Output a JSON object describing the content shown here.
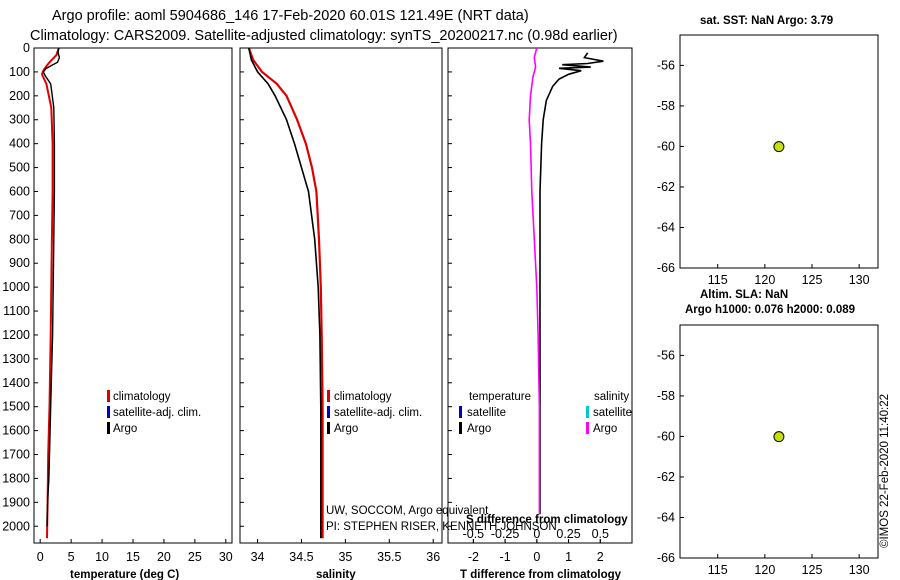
{
  "titles": {
    "line1": "Argo profile: aoml 5904686_146 17-Feb-2020 60.01S 121.49E (NRT data)",
    "line2": "Climatology: CARS2009. Satellite-adjusted climatology: synTS_20200217.nc (0.98d earlier)"
  },
  "depth_axis": {
    "ylim": [
      2070,
      0
    ],
    "ticks": [
      0,
      100,
      200,
      300,
      400,
      500,
      600,
      700,
      800,
      900,
      1000,
      1100,
      1200,
      1300,
      1400,
      1500,
      1600,
      1700,
      1800,
      1900,
      2000
    ]
  },
  "annotations": {
    "owner": "UW, SOCCOM, Argo equivalent",
    "pi": "PI: STEPHEN RISER, KENNETH JOHNSON",
    "stamp": "©IMOS 22-Feb-2020 11:40:22"
  },
  "colors": {
    "climatology": "#e00000",
    "satellite": "#0000cc",
    "argo": "#000000",
    "sal_diff": "#ff00ff",
    "sal_sat": "#00c8c8",
    "marker": "#c8e000"
  },
  "chart_data": [
    {
      "type": "line",
      "panel": "temperature",
      "xlabel": "temperature (deg C)",
      "xlim": [
        -1,
        31
      ],
      "xticks": [
        0,
        5,
        10,
        15,
        20,
        25,
        30
      ],
      "legend": [
        "climatology",
        "satellite-adj. clim.",
        "Argo"
      ],
      "series": [
        {
          "name": "climatology",
          "color": "#e00000",
          "x": [
            3.0,
            2.6,
            1.5,
            0.6,
            0.3,
            1.0,
            1.8,
            2.0,
            2.0,
            1.9,
            1.8,
            1.7,
            1.5,
            1.3,
            1.2,
            1.1
          ],
          "depth": [
            0,
            30,
            60,
            90,
            110,
            150,
            250,
            400,
            600,
            800,
            1000,
            1200,
            1500,
            1700,
            1900,
            2050
          ]
        },
        {
          "name": "Argo",
          "color": "#000000",
          "x": [
            3.0,
            2.9,
            3.1,
            2.8,
            1.0,
            0.5,
            0.8,
            1.7,
            2.2,
            2.3,
            2.3,
            2.2,
            2.1,
            2.0,
            1.8,
            1.6,
            1.4,
            1.2,
            1.1
          ],
          "depth": [
            0,
            20,
            40,
            60,
            85,
            100,
            115,
            150,
            250,
            400,
            600,
            800,
            1000,
            1200,
            1400,
            1600,
            1800,
            1900,
            2000
          ]
        }
      ]
    },
    {
      "type": "line",
      "panel": "salinity",
      "xlabel": "salinity",
      "xlim": [
        33.8,
        36.1
      ],
      "xticks": [
        34,
        34.5,
        35,
        35.5,
        36
      ],
      "legend": [
        "climatology",
        "satellite-adj. clim.",
        "Argo"
      ],
      "series": [
        {
          "name": "climatology",
          "color": "#e00000",
          "x": [
            33.9,
            33.95,
            34.05,
            34.22,
            34.33,
            34.45,
            34.55,
            34.62,
            34.67,
            34.7,
            34.72,
            34.73,
            34.74,
            34.74,
            34.74
          ],
          "depth": [
            0,
            50,
            100,
            150,
            200,
            300,
            400,
            500,
            600,
            800,
            1000,
            1200,
            1500,
            1800,
            2050
          ]
        },
        {
          "name": "Argo",
          "color": "#000000",
          "x": [
            33.9,
            33.93,
            34.0,
            34.12,
            34.2,
            34.33,
            34.42,
            34.5,
            34.58,
            34.65,
            34.69,
            34.71,
            34.72,
            34.72,
            34.72
          ],
          "depth": [
            0,
            50,
            100,
            150,
            200,
            300,
            400,
            500,
            600,
            800,
            1000,
            1200,
            1500,
            1800,
            2050
          ]
        }
      ]
    },
    {
      "type": "line",
      "panel": "difference",
      "xlabel": "T difference from climatology",
      "xlabel2": "S difference from climatology",
      "xlim_T": [
        -2.8,
        3.0
      ],
      "xticks_T": [
        -2,
        -1,
        0,
        1,
        2
      ],
      "xlim_S": [
        -0.7,
        0.75
      ],
      "xticks_S": [
        "-0.5",
        "-0.25",
        "0",
        "0.25",
        "0.5"
      ],
      "legend_left": {
        "head": "temperature",
        "items": [
          "satellite",
          "Argo"
        ]
      },
      "legend_right": {
        "head": "salinity",
        "items": [
          "satellite",
          "Argo"
        ]
      },
      "series": [
        {
          "name": "T difference",
          "color": "#000000",
          "axis": "T",
          "x": [
            1.6,
            1.5,
            2.1,
            1.6,
            0.8,
            1.7,
            0.7,
            1.4,
            1.0,
            0.7,
            0.5,
            0.3,
            0.2,
            0.15,
            0.1,
            0.1,
            0.1,
            0.1,
            0.1
          ],
          "depth": [
            20,
            40,
            55,
            65,
            70,
            80,
            85,
            95,
            110,
            130,
            160,
            220,
            300,
            400,
            600,
            1000,
            1400,
            1800,
            1950
          ]
        },
        {
          "name": "S difference",
          "color": "#ff00ff",
          "axis": "S",
          "x": [
            0.0,
            -0.02,
            -0.01,
            -0.03,
            -0.05,
            -0.06,
            -0.05,
            -0.04,
            -0.02,
            0.0,
            0.01,
            0.02,
            0.02,
            0.02
          ],
          "depth": [
            0,
            40,
            80,
            120,
            200,
            300,
            400,
            600,
            800,
            1000,
            1200,
            1500,
            1800,
            1950
          ]
        }
      ]
    },
    {
      "type": "scatter",
      "panel": "map-sst",
      "title": "sat. SST: NaN Argo: 3.79",
      "xlim": [
        111,
        132
      ],
      "ylim": [
        -66,
        -54.5
      ],
      "xticks": [
        115,
        120,
        125,
        130
      ],
      "yticks": [
        -56,
        -58,
        -60,
        -62,
        -64,
        -66
      ],
      "points": [
        {
          "x": 121.49,
          "y": -60.01
        }
      ]
    },
    {
      "type": "scatter",
      "panel": "map-sla",
      "title": "Altim. SLA: NaN",
      "subtitle": "Argo h1000: 0.076 h2000: 0.089",
      "xlim": [
        111,
        132
      ],
      "ylim": [
        -66,
        -54.5
      ],
      "xticks": [
        115,
        120,
        125,
        130
      ],
      "yticks": [
        -56,
        -58,
        -60,
        -62,
        -64,
        -66
      ],
      "points": [
        {
          "x": 121.49,
          "y": -60.01
        }
      ]
    }
  ]
}
